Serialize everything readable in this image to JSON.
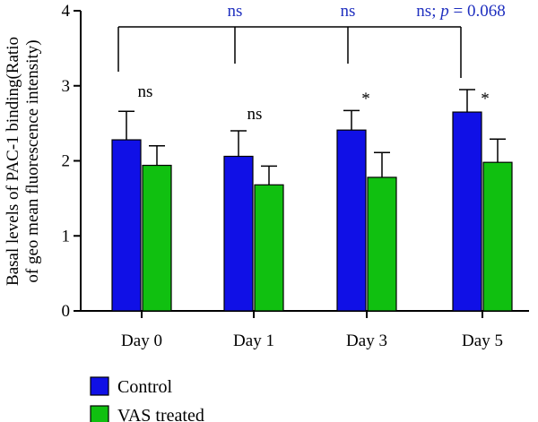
{
  "chart_data": {
    "type": "bar",
    "ylabel_line1": "Basal levels of PAC-1 binding(Ratio",
    "ylabel_line2": "of geo mean fluorescence intensity)",
    "ylim": [
      0,
      4
    ],
    "yticks": [
      0,
      1,
      2,
      3,
      4
    ],
    "categories": [
      "Day 0",
      "Day 1",
      "Day 3",
      "Day 5"
    ],
    "series": [
      {
        "name": "Control",
        "color": "#1010e6",
        "values": [
          2.28,
          2.06,
          2.41,
          2.65
        ],
        "errors": [
          0.38,
          0.34,
          0.26,
          0.3
        ]
      },
      {
        "name": "VAS treated",
        "color": "#10c010",
        "values": [
          1.94,
          1.68,
          1.78,
          1.98
        ],
        "errors": [
          0.26,
          0.25,
          0.33,
          0.31
        ]
      }
    ],
    "pair_labels": [
      "ns",
      "ns",
      "*",
      "*"
    ],
    "bracket_labels": {
      "day1": "ns",
      "day3": "ns",
      "day5_prefix": "ns; ",
      "day5_p": "p",
      "day5_value": " = 0.068"
    },
    "bracket_label_color": "#1f2fbf",
    "legend_position": "bottom-left"
  }
}
